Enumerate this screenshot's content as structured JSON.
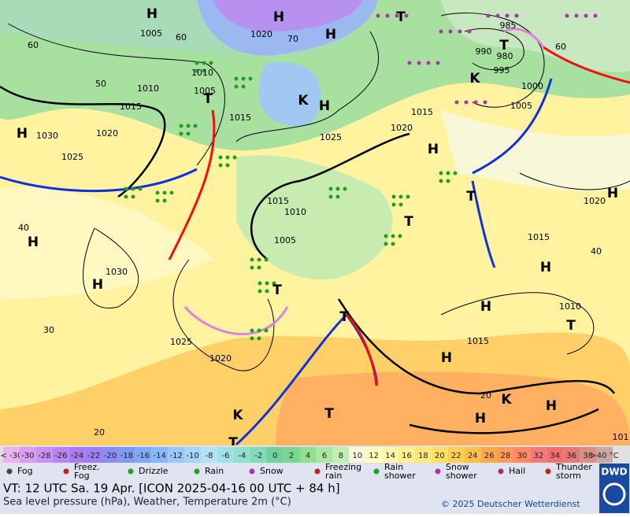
{
  "map": {
    "pressure_labels": [
      "1005",
      "1020",
      "70",
      "60",
      "60",
      "50",
      "40",
      "30",
      "20",
      "60",
      "40",
      "20",
      "1010",
      "1010",
      "1005",
      "1015",
      "1015",
      "1020",
      "1030",
      "1025",
      "1025",
      "1020",
      "1015",
      "1015",
      "1010",
      "1005",
      "1030",
      "1025",
      "1020",
      "990",
      "980",
      "995",
      "985",
      "1000",
      "1005",
      "1020",
      "1015",
      "1010",
      "1015",
      "101"
    ],
    "centers": [
      "H",
      "H",
      "H",
      "H",
      "H",
      "H",
      "H",
      "H",
      "H",
      "H",
      "H",
      "H",
      "H",
      "H",
      "T",
      "T",
      "T",
      "T",
      "T",
      "T",
      "T",
      "T",
      "T",
      "T",
      "K",
      "K",
      "K",
      "K"
    ]
  },
  "color_scale": {
    "labels": [
      "< -30",
      "-30",
      "-28",
      "-26",
      "-24",
      "-22",
      "-20",
      "-18",
      "-16",
      "-14",
      "-12",
      "-10",
      "-8",
      "-6",
      "-4",
      "-2",
      "0",
      "2",
      "4",
      "6",
      "8",
      "10",
      "12",
      "14",
      "16",
      "18",
      "20",
      "22",
      "24",
      "26",
      "28",
      "30",
      "32",
      "34",
      "36",
      "38",
      ">40 °C"
    ],
    "colors": [
      "#e8b4f0",
      "#d89cf0",
      "#c890f0",
      "#b884f0",
      "#a87cf0",
      "#9c80f4",
      "#8c8cf4",
      "#8098f4",
      "#80a8f8",
      "#88b8fc",
      "#98c8fc",
      "#a8d4fc",
      "#b4e0f8",
      "#a0e0e8",
      "#90e0d0",
      "#80dcb8",
      "#70d0a0",
      "#78d890",
      "#90e090",
      "#a8e8a0",
      "#c0f0b0",
      "#f8f8e0",
      "#ffffc0",
      "#fff8a8",
      "#fff090",
      "#ffe878",
      "#ffe060",
      "#ffd050",
      "#ffc048",
      "#ffa848",
      "#ff9858",
      "#ff8868",
      "#f87878",
      "#f07070",
      "#e87878",
      "#d89080",
      "#c8a8a0"
    ]
  },
  "legend": {
    "items": [
      [
        "Fog"
      ],
      [
        "Freez.",
        "Fog"
      ],
      [
        "Drizzle"
      ],
      [
        "Rain"
      ],
      [
        "Snow"
      ],
      [
        "Freezing",
        "rain"
      ],
      [
        "Rain",
        "shower"
      ],
      [
        "Snow",
        "shower"
      ],
      [
        "Hail"
      ],
      [
        "Thunder",
        "storm"
      ]
    ]
  },
  "footer": {
    "valid_time": "VT: 12 UTC Sa.  19 Apr. [ICON 2025-04-16  00 UTC + 84 h]",
    "subtitle": "Sea level pressure (hPa), Weather, Temperature 2m (°C)",
    "copyright": "© 2025 Deutscher Wetterdienst",
    "logo": "DWD"
  }
}
